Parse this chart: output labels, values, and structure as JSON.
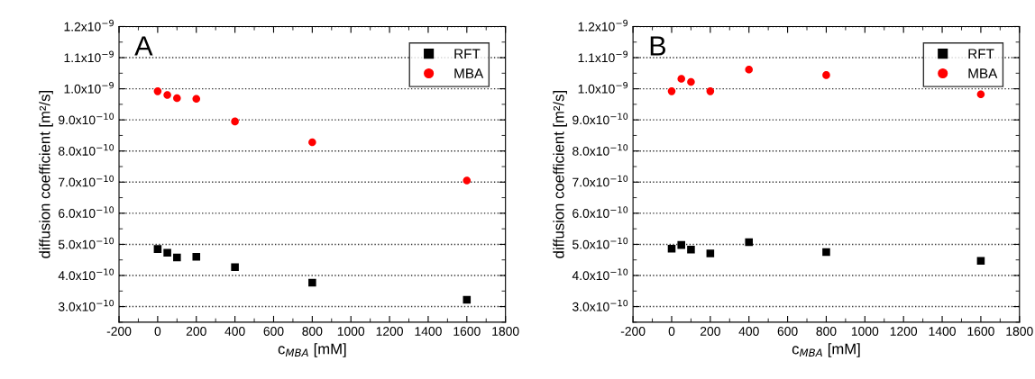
{
  "chart_data": [
    {
      "type": "scatter",
      "annotations": [
        "A"
      ],
      "xlabel": "c$_{MBA}$ [mM]",
      "ylabel": "diffusion coefficient [m²/s]",
      "x": [
        0,
        50,
        100,
        200,
        400,
        800,
        1600
      ],
      "series": [
        {
          "name": "RFT",
          "color": "#000000",
          "marker": "square",
          "values": [
            4.85e-10,
            4.73e-10,
            4.58e-10,
            4.6e-10,
            4.27e-10,
            3.77e-10,
            3.22e-10
          ]
        },
        {
          "name": "MBA",
          "color": "#ff0000",
          "marker": "circle",
          "values": [
            9.92e-10,
            9.8e-10,
            9.7e-10,
            9.68e-10,
            8.95e-10,
            8.28e-10,
            7.05e-10
          ]
        }
      ],
      "xlim": [
        -200,
        1800
      ],
      "xticks": [
        -200,
        0,
        200,
        400,
        600,
        800,
        1000,
        1200,
        1400,
        1600,
        1800
      ],
      "ylim": [
        2.5e-10,
        1.2e-09
      ],
      "yticks": [
        {
          "value": 3e-10,
          "label": "3.0x10$^{−10}$"
        },
        {
          "value": 4e-10,
          "label": "4.0x10$^{−10}$"
        },
        {
          "value": 5e-10,
          "label": "5.0x10$^{−10}$"
        },
        {
          "value": 6e-10,
          "label": "6.0x10$^{−10}$"
        },
        {
          "value": 7e-10,
          "label": "7.0x10$^{−10}$"
        },
        {
          "value": 8e-10,
          "label": "8.0x10$^{−10}$"
        },
        {
          "value": 9e-10,
          "label": "9.0x10$^{−10}$"
        },
        {
          "value": 1e-09,
          "label": "1.0x10$^{−9}$"
        },
        {
          "value": 1.1e-09,
          "label": "1.1x10$^{−9}$"
        },
        {
          "value": 1.2e-09,
          "label": "1.2x10$^{−9}$"
        }
      ],
      "grid": "y",
      "legend": "top right"
    },
    {
      "type": "scatter",
      "annotations": [
        "B"
      ],
      "xlabel": "c$_{MBA}$ [mM]",
      "ylabel": "diffusion coefficient [m²/s]",
      "x": [
        0,
        50,
        100,
        200,
        400,
        800,
        1600
      ],
      "series": [
        {
          "name": "RFT",
          "color": "#000000",
          "marker": "square",
          "values": [
            4.86e-10,
            4.98e-10,
            4.83e-10,
            4.71e-10,
            5.07e-10,
            4.75e-10,
            4.47e-10
          ]
        },
        {
          "name": "MBA",
          "color": "#ff0000",
          "marker": "circle",
          "values": [
            9.92e-10,
            1.032e-09,
            1.022e-09,
            9.92e-10,
            1.062e-09,
            1.044e-09,
            9.82e-10
          ]
        }
      ],
      "xlim": [
        -200,
        1800
      ],
      "xticks": [
        -200,
        0,
        200,
        400,
        600,
        800,
        1000,
        1200,
        1400,
        1600,
        1800
      ],
      "ylim": [
        2.5e-10,
        1.2e-09
      ],
      "yticks": [
        {
          "value": 3e-10,
          "label": "3.0x10$^{−10}$"
        },
        {
          "value": 4e-10,
          "label": "4.0x10$^{−10}$"
        },
        {
          "value": 5e-10,
          "label": "5.0x10$^{−10}$"
        },
        {
          "value": 6e-10,
          "label": "6.0x10$^{−10}$"
        },
        {
          "value": 7e-10,
          "label": "7.0x10$^{−10}$"
        },
        {
          "value": 8e-10,
          "label": "8.0x10$^{−10}$"
        },
        {
          "value": 9e-10,
          "label": "9.0x10$^{−10}$"
        },
        {
          "value": 1e-09,
          "label": "1.0x10$^{−9}$"
        },
        {
          "value": 1.1e-09,
          "label": "1.1x10$^{−9}$"
        },
        {
          "value": 1.2e-09,
          "label": "1.2x10$^{−9}$"
        }
      ],
      "grid": "y",
      "legend": "top right"
    }
  ]
}
